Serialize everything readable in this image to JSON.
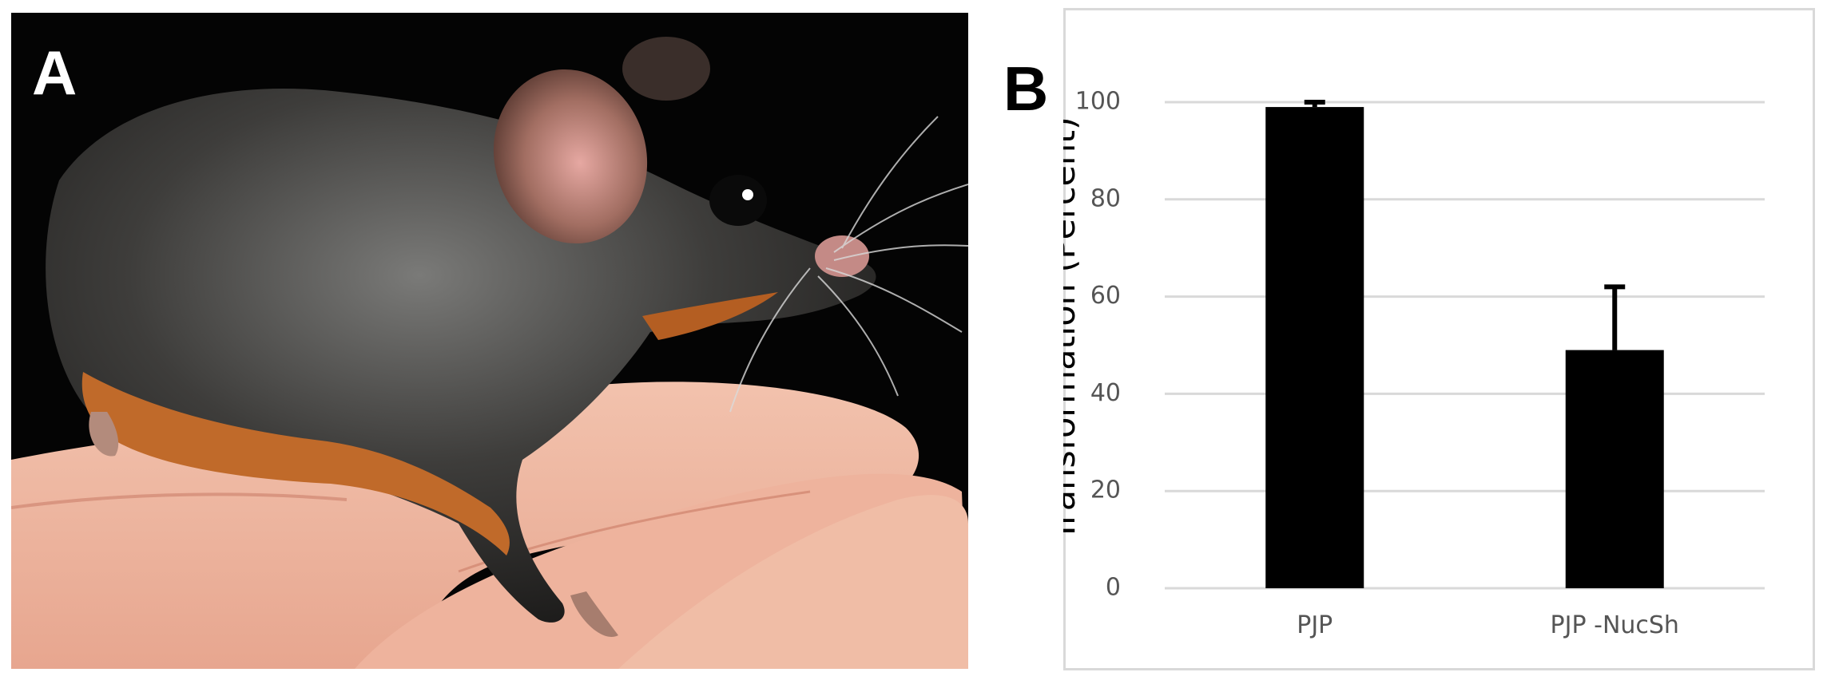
{
  "panels": {
    "a": {
      "letter": "A"
    },
    "b": {
      "letter": "B"
    }
  },
  "chart_data": {
    "type": "bar",
    "categories": [
      "PJP",
      "PJP -NucSh"
    ],
    "values": [
      99,
      49
    ],
    "error_plus": [
      1,
      13
    ],
    "title": "",
    "xlabel": "",
    "ylabel": "Transformation (Percent)",
    "ylim": [
      0,
      100
    ],
    "yticks": [
      0,
      20,
      40,
      60,
      80,
      100
    ],
    "grid": true,
    "legend": "none",
    "colors": {
      "bar": "#000000",
      "grid": "#d9d9d9",
      "tick_text": "#555555"
    }
  }
}
